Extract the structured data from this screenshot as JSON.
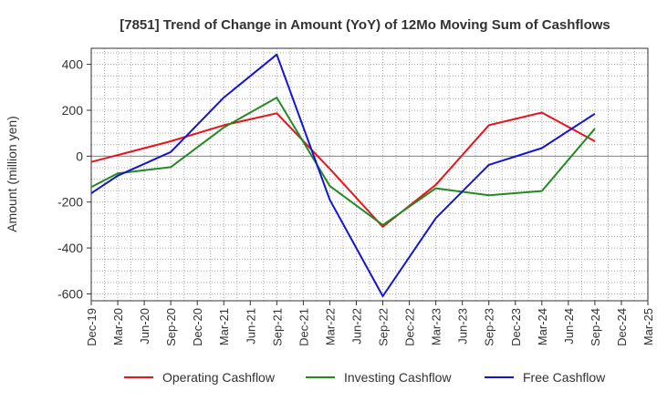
{
  "chart_data": {
    "type": "line",
    "title": "[7851]  Trend of Change in Amount (YoY) of 12Mo Moving Sum of Cashflows",
    "xlabel": "",
    "ylabel": "Amount (million yen)",
    "ylim": [
      -630,
      470
    ],
    "yticks": [
      400,
      200,
      0,
      -200,
      -400,
      -600
    ],
    "grid": true,
    "legend_position": "bottom",
    "categories": [
      "Dec-19",
      "Mar-20",
      "Jun-20",
      "Sep-20",
      "Dec-20",
      "Mar-21",
      "Jun-21",
      "Sep-21",
      "Dec-21",
      "Mar-22",
      "Jun-22",
      "Sep-22",
      "Dec-22",
      "Mar-23",
      "Jun-23",
      "Sep-23",
      "Dec-23",
      "Mar-24",
      "Jun-24",
      "Sep-24",
      "Dec-24",
      "Mar-25"
    ],
    "series": [
      {
        "name": "Operating Cashflow",
        "color": "#e8141a",
        "values": [
          -25,
          null,
          null,
          65,
          null,
          135,
          null,
          187,
          null,
          -55,
          null,
          -308,
          null,
          -125,
          null,
          135,
          null,
          190,
          null,
          65,
          null,
          null
        ]
      },
      {
        "name": "Investing Cashflow",
        "color": "#238a23",
        "values": [
          -135,
          -75,
          null,
          -48,
          null,
          125,
          null,
          255,
          null,
          -130,
          null,
          -300,
          null,
          -140,
          null,
          -170,
          null,
          -152,
          null,
          120,
          null,
          null
        ]
      },
      {
        "name": "Free Cashflow",
        "color": "#1414d2",
        "values": [
          -162,
          -85,
          null,
          18,
          null,
          255,
          null,
          443,
          null,
          -190,
          null,
          -610,
          null,
          -270,
          null,
          -38,
          null,
          35,
          null,
          185,
          null,
          null
        ]
      }
    ]
  }
}
